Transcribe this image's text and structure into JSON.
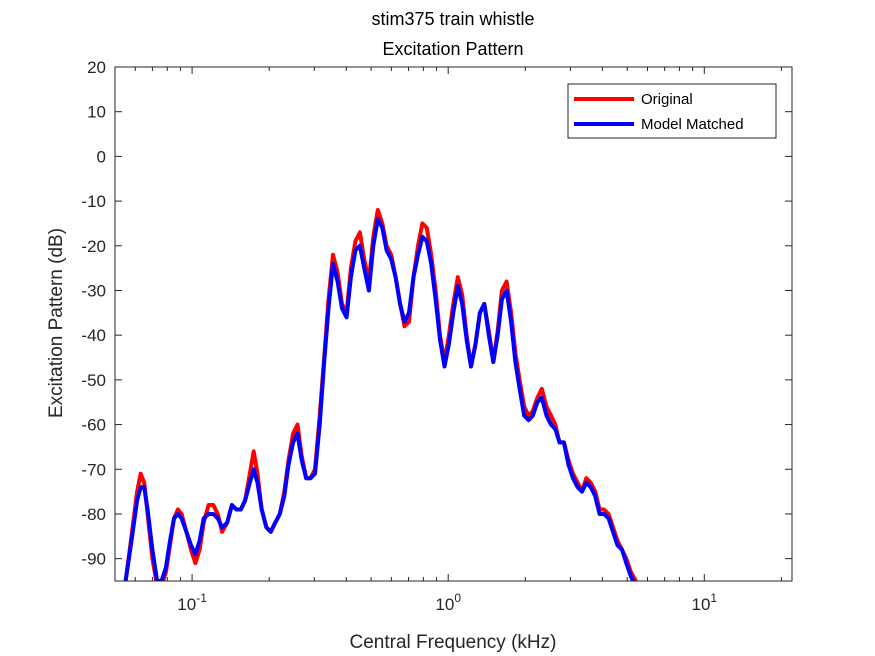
{
  "chart_data": {
    "type": "line",
    "title": "stim375 train whistle",
    "subtitle": "Excitation Pattern",
    "xlabel": "Central Frequency (kHz)",
    "ylabel": "Excitation Pattern (dB)",
    "xscale": "log",
    "xlim": [
      0.05,
      22
    ],
    "ylim": [
      -95,
      20
    ],
    "yticks": [
      20,
      10,
      0,
      -10,
      -20,
      -30,
      -40,
      -50,
      -60,
      -70,
      -80,
      -90
    ],
    "xticks": [
      {
        "value": 0.1,
        "base": "10",
        "exp": "-1"
      },
      {
        "value": 1,
        "base": "10",
        "exp": "0"
      },
      {
        "value": 10,
        "base": "10",
        "exp": "1"
      }
    ],
    "grid": false,
    "legend": "top-right",
    "series": [
      {
        "name": "Original",
        "color": "#ff0000",
        "x": [
          0.055,
          0.058,
          0.061,
          0.063,
          0.065,
          0.067,
          0.07,
          0.073,
          0.076,
          0.079,
          0.082,
          0.085,
          0.088,
          0.091,
          0.095,
          0.099,
          0.103,
          0.107,
          0.111,
          0.116,
          0.121,
          0.126,
          0.131,
          0.137,
          0.143,
          0.149,
          0.155,
          0.161,
          0.168,
          0.174,
          0.18,
          0.187,
          0.195,
          0.203,
          0.211,
          0.22,
          0.229,
          0.238,
          0.248,
          0.258,
          0.268,
          0.279,
          0.29,
          0.302,
          0.315,
          0.328,
          0.341,
          0.355,
          0.37,
          0.385,
          0.401,
          0.417,
          0.434,
          0.452,
          0.47,
          0.49,
          0.51,
          0.531,
          0.553,
          0.575,
          0.599,
          0.623,
          0.649,
          0.675,
          0.703,
          0.732,
          0.762,
          0.793,
          0.825,
          0.858,
          0.893,
          0.929,
          0.967,
          1.006,
          1.047,
          1.09,
          1.134,
          1.18,
          1.228,
          1.278,
          1.33,
          1.384,
          1.44,
          1.5,
          1.56,
          1.62,
          1.69,
          1.76,
          1.83,
          1.9,
          1.98,
          2.06,
          2.14,
          2.23,
          2.32,
          2.42,
          2.52,
          2.62,
          2.72,
          2.83,
          2.95,
          3.07,
          3.2,
          3.33,
          3.46,
          3.6,
          3.75,
          3.9,
          4.06,
          4.23,
          4.4,
          4.58,
          4.77,
          4.96,
          5.17,
          5.4
        ],
        "y": [
          -95,
          -85,
          -75,
          -71,
          -73,
          -80,
          -90,
          -96,
          -96,
          -93,
          -87,
          -81,
          -79,
          -80,
          -84,
          -88,
          -91,
          -88,
          -82,
          -78,
          -78,
          -80,
          -84,
          -82,
          -78,
          -79,
          -79,
          -77,
          -71,
          -66,
          -71,
          -79,
          -83,
          -84,
          -82,
          -80,
          -75,
          -68,
          -62,
          -60,
          -67,
          -72,
          -72,
          -70,
          -58,
          -45,
          -32,
          -22,
          -26,
          -33,
          -35,
          -25,
          -19,
          -17,
          -23,
          -28,
          -18,
          -12,
          -15,
          -20,
          -22,
          -27,
          -33,
          -38,
          -37,
          -27,
          -20,
          -15,
          -16,
          -22,
          -30,
          -40,
          -46,
          -40,
          -33,
          -27,
          -31,
          -40,
          -47,
          -42,
          -35,
          -33,
          -39,
          -46,
          -39,
          -30,
          -28,
          -35,
          -44,
          -50,
          -56,
          -58,
          -57,
          -54,
          -52,
          -56,
          -58,
          -60,
          -64,
          -64,
          -68,
          -71,
          -73,
          -75,
          -72,
          -73,
          -75,
          -79,
          -79,
          -80,
          -83,
          -86,
          -88,
          -90,
          -93,
          -95
        ]
      },
      {
        "name": "Model Matched",
        "color": "#0000ff",
        "x": [
          0.055,
          0.058,
          0.061,
          0.063,
          0.065,
          0.067,
          0.07,
          0.073,
          0.076,
          0.079,
          0.082,
          0.085,
          0.088,
          0.091,
          0.095,
          0.099,
          0.103,
          0.107,
          0.111,
          0.116,
          0.121,
          0.126,
          0.131,
          0.137,
          0.143,
          0.149,
          0.155,
          0.161,
          0.168,
          0.174,
          0.18,
          0.187,
          0.195,
          0.203,
          0.211,
          0.22,
          0.229,
          0.238,
          0.248,
          0.258,
          0.268,
          0.279,
          0.29,
          0.302,
          0.315,
          0.328,
          0.341,
          0.355,
          0.37,
          0.385,
          0.401,
          0.417,
          0.434,
          0.452,
          0.47,
          0.49,
          0.51,
          0.531,
          0.553,
          0.575,
          0.599,
          0.623,
          0.649,
          0.675,
          0.703,
          0.732,
          0.762,
          0.793,
          0.825,
          0.858,
          0.893,
          0.929,
          0.967,
          1.006,
          1.047,
          1.09,
          1.134,
          1.18,
          1.228,
          1.278,
          1.33,
          1.384,
          1.44,
          1.5,
          1.56,
          1.62,
          1.69,
          1.76,
          1.83,
          1.9,
          1.98,
          2.06,
          2.14,
          2.23,
          2.32,
          2.42,
          2.52,
          2.62,
          2.72,
          2.83,
          2.95,
          3.07,
          3.2,
          3.33,
          3.46,
          3.6,
          3.75,
          3.9,
          4.06,
          4.23,
          4.4,
          4.58,
          4.77,
          4.96,
          5.17,
          5.4
        ],
        "y": [
          -95,
          -86,
          -77,
          -74,
          -74,
          -79,
          -88,
          -95,
          -95,
          -92,
          -86,
          -81,
          -80,
          -81,
          -84,
          -87,
          -89,
          -86,
          -81,
          -80,
          -80,
          -81,
          -83,
          -82,
          -78,
          -79,
          -79,
          -77,
          -73,
          -70,
          -73,
          -79,
          -83,
          -84,
          -82,
          -80,
          -76,
          -69,
          -64,
          -62,
          -68,
          -72,
          -72,
          -71,
          -60,
          -46,
          -34,
          -24,
          -28,
          -34,
          -36,
          -27,
          -21,
          -20,
          -25,
          -30,
          -20,
          -14,
          -16,
          -21,
          -23,
          -27,
          -33,
          -37,
          -35,
          -27,
          -22,
          -18,
          -19,
          -24,
          -32,
          -41,
          -47,
          -42,
          -35,
          -29,
          -33,
          -41,
          -47,
          -42,
          -35,
          -33,
          -40,
          -46,
          -40,
          -32,
          -30,
          -37,
          -46,
          -52,
          -58,
          -59,
          -58,
          -55,
          -54,
          -58,
          -60,
          -61,
          -64,
          -64,
          -69,
          -72,
          -74,
          -75,
          -73,
          -74,
          -76,
          -80,
          -80,
          -81,
          -84,
          -87,
          -88,
          -91,
          -94,
          -96
        ]
      }
    ]
  }
}
